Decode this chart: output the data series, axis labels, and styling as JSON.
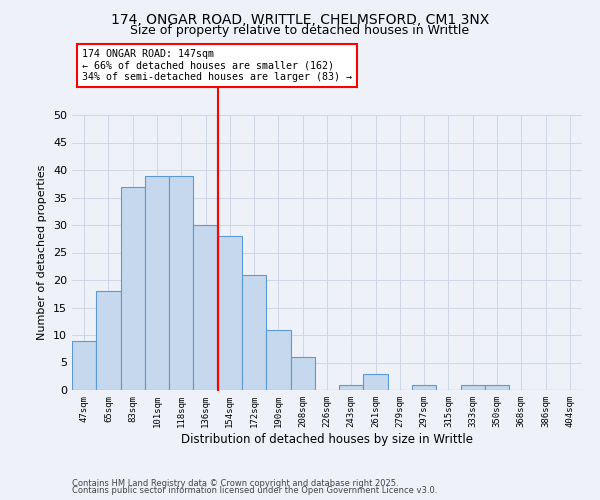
{
  "title_line1": "174, ONGAR ROAD, WRITTLE, CHELMSFORD, CM1 3NX",
  "title_line2": "Size of property relative to detached houses in Writtle",
  "xlabel": "Distribution of detached houses by size in Writtle",
  "ylabel": "Number of detached properties",
  "bar_labels": [
    "47sqm",
    "65sqm",
    "83sqm",
    "101sqm",
    "118sqm",
    "136sqm",
    "154sqm",
    "172sqm",
    "190sqm",
    "208sqm",
    "226sqm",
    "243sqm",
    "261sqm",
    "279sqm",
    "297sqm",
    "315sqm",
    "333sqm",
    "350sqm",
    "368sqm",
    "386sqm",
    "404sqm"
  ],
  "bar_values": [
    9,
    18,
    37,
    39,
    39,
    30,
    28,
    21,
    11,
    6,
    0,
    1,
    3,
    0,
    1,
    0,
    1,
    1,
    0,
    0,
    0
  ],
  "bar_color": "#c5d8ed",
  "bar_edge_color": "#5b9bd5",
  "red_line_x": 5.5,
  "annotation_title": "174 ONGAR ROAD: 147sqm",
  "annotation_line1": "← 66% of detached houses are smaller (162)",
  "annotation_line2": "34% of semi-detached houses are larger (83) →",
  "annotation_box_color": "white",
  "annotation_box_edge": "red",
  "red_line_color": "red",
  "ylim": [
    0,
    50
  ],
  "yticks": [
    0,
    5,
    10,
    15,
    20,
    25,
    30,
    35,
    40,
    45,
    50
  ],
  "grid_color": "#d0d8e8",
  "background_color": "#eef2f8",
  "footer_line1": "Contains HM Land Registry data © Crown copyright and database right 2025.",
  "footer_line2": "Contains public sector information licensed under the Open Government Licence v3.0.",
  "title_fontsize": 10,
  "subtitle_fontsize": 9
}
